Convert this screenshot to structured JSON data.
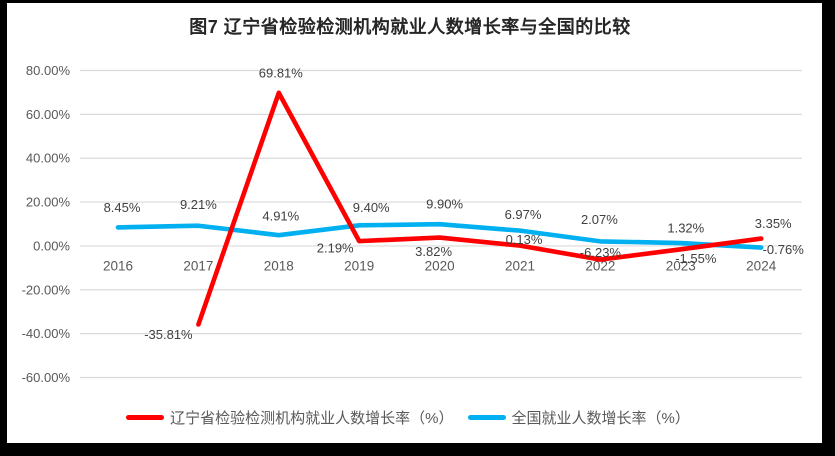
{
  "colors": {
    "frame": "#000000",
    "background": "#ffffff",
    "gridline": "#d9d9d9",
    "axis_text": "#595959",
    "data_label_text": "#404040",
    "title_text": "#262626",
    "legend_text": "#595959",
    "liaoning_red": "#ff0000",
    "national_blue": "#00b0f0"
  },
  "chart_data": {
    "type": "line",
    "title": "图7  辽宁省检验检测机构就业人数增长率与全国的比较",
    "categories": [
      "2016",
      "2017",
      "2018",
      "2019",
      "2020",
      "2021",
      "2022",
      "2023",
      "2024"
    ],
    "series": [
      {
        "name": "辽宁省检验检测机构就业人数增长率（%）",
        "color": "#ff0000",
        "values": [
          null,
          -35.81,
          69.81,
          2.19,
          3.82,
          0.13,
          -6.23,
          -1.55,
          3.35
        ],
        "labels": [
          "",
          "-35.81%",
          "69.81%",
          "2.19%",
          "3.82%",
          "0.13%",
          "-6.23%",
          "-1.55%",
          "3.35%"
        ]
      },
      {
        "name": "全国就业人数增长率（%）",
        "color": "#00b0f0",
        "values": [
          8.45,
          9.21,
          4.91,
          9.4,
          9.9,
          6.97,
          2.07,
          1.32,
          -0.76
        ],
        "labels": [
          "8.45%",
          "9.21%",
          "4.91%",
          "9.40%",
          "9.90%",
          "6.97%",
          "2.07%",
          "1.32%",
          "-0.76%"
        ]
      }
    ],
    "ylim": [
      -60,
      80
    ],
    "ytick_step": 20,
    "ytick_labels": [
      "80.00%",
      "60.00%",
      "40.00%",
      "20.00%",
      "0.00%",
      "-20.00%",
      "-40.00%",
      "-60.00%"
    ],
    "grid": true,
    "markers": false,
    "legend_position": "bottom",
    "xlabel": "",
    "ylabel": ""
  }
}
